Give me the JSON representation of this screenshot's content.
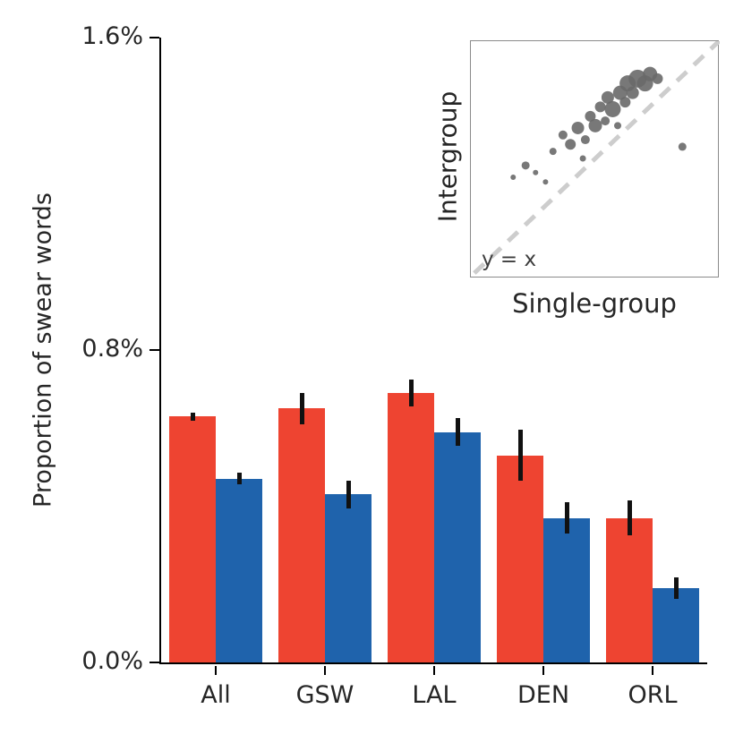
{
  "chart_data": {
    "type": "bar",
    "title": "",
    "ylabel": "Proportion of swear words",
    "xlabel": "",
    "ylim": [
      0,
      1.6
    ],
    "yticks": [
      "0.0%",
      "0.8%",
      "1.6%"
    ],
    "ytick_values": [
      0,
      0.8,
      1.6
    ],
    "grid": false,
    "legend": "none",
    "categories": [
      "All",
      "GSW",
      "LAL",
      "DEN",
      "ORL"
    ],
    "series": [
      {
        "name": "red-series",
        "color": "#ee4431",
        "values": [
          0.63,
          0.65,
          0.69,
          0.53,
          0.37
        ],
        "errors": [
          0.01,
          0.04,
          0.035,
          0.065,
          0.045
        ]
      },
      {
        "name": "blue-series",
        "color": "#1f63ac",
        "values": [
          0.47,
          0.43,
          0.59,
          0.37,
          0.19
        ],
        "errors": [
          0.015,
          0.035,
          0.035,
          0.04,
          0.028
        ]
      }
    ],
    "inset": {
      "type": "scatter",
      "xlabel": "Single-group",
      "ylabel": "Intergroup",
      "annotation": "y = x",
      "reference_line": "y = x (dashed diagonal)",
      "point_color": "#696969",
      "line_color": "#cdcdcd",
      "points": [
        {
          "x": 0.17,
          "y": 0.42,
          "r": 3
        },
        {
          "x": 0.22,
          "y": 0.47,
          "r": 4.5
        },
        {
          "x": 0.26,
          "y": 0.44,
          "r": 3
        },
        {
          "x": 0.3,
          "y": 0.4,
          "r": 3
        },
        {
          "x": 0.33,
          "y": 0.53,
          "r": 4
        },
        {
          "x": 0.37,
          "y": 0.6,
          "r": 5
        },
        {
          "x": 0.4,
          "y": 0.56,
          "r": 6
        },
        {
          "x": 0.43,
          "y": 0.63,
          "r": 7
        },
        {
          "x": 0.45,
          "y": 0.5,
          "r": 3.5
        },
        {
          "x": 0.46,
          "y": 0.58,
          "r": 5
        },
        {
          "x": 0.48,
          "y": 0.68,
          "r": 6
        },
        {
          "x": 0.5,
          "y": 0.64,
          "r": 7.5
        },
        {
          "x": 0.52,
          "y": 0.72,
          "r": 6
        },
        {
          "x": 0.54,
          "y": 0.66,
          "r": 5
        },
        {
          "x": 0.55,
          "y": 0.76,
          "r": 7
        },
        {
          "x": 0.57,
          "y": 0.71,
          "r": 9
        },
        {
          "x": 0.59,
          "y": 0.64,
          "r": 4
        },
        {
          "x": 0.6,
          "y": 0.78,
          "r": 8
        },
        {
          "x": 0.62,
          "y": 0.74,
          "r": 6
        },
        {
          "x": 0.63,
          "y": 0.82,
          "r": 9
        },
        {
          "x": 0.65,
          "y": 0.78,
          "r": 7
        },
        {
          "x": 0.67,
          "y": 0.84,
          "r": 10
        },
        {
          "x": 0.7,
          "y": 0.82,
          "r": 9
        },
        {
          "x": 0.72,
          "y": 0.86,
          "r": 8
        },
        {
          "x": 0.75,
          "y": 0.84,
          "r": 6
        },
        {
          "x": 0.85,
          "y": 0.55,
          "r": 4.5
        }
      ]
    }
  }
}
